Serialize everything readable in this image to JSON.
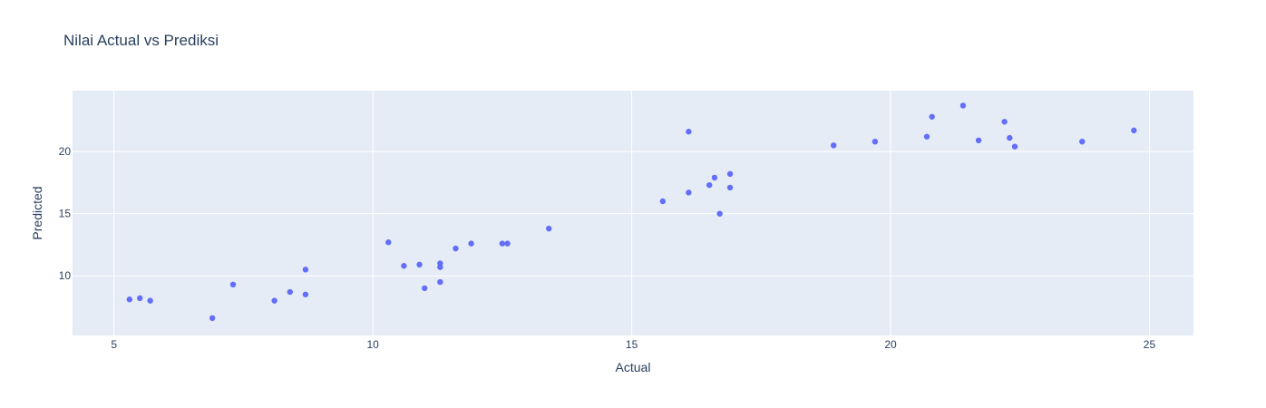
{
  "chart_data": {
    "type": "scatter",
    "title": "Nilai Actual vs Prediksi",
    "xlabel": "Actual",
    "ylabel": "Predicted",
    "xlim": [
      4.2,
      25.85
    ],
    "ylim": [
      5.2,
      24.9
    ],
    "xticks": [
      5,
      10,
      15,
      20,
      25
    ],
    "yticks": [
      10,
      15,
      20
    ],
    "grid": true,
    "colors": {
      "plot_bg": "#e5ecf6",
      "grid": "#ffffff",
      "marker": "#636efa",
      "text": "#2a3f5f"
    },
    "points": [
      {
        "x": 5.3,
        "y": 8.1
      },
      {
        "x": 5.5,
        "y": 8.2
      },
      {
        "x": 5.7,
        "y": 8.0
      },
      {
        "x": 6.9,
        "y": 6.6
      },
      {
        "x": 7.3,
        "y": 9.3
      },
      {
        "x": 8.1,
        "y": 8.0
      },
      {
        "x": 8.4,
        "y": 8.7
      },
      {
        "x": 8.7,
        "y": 8.5
      },
      {
        "x": 8.7,
        "y": 10.5
      },
      {
        "x": 10.3,
        "y": 12.7
      },
      {
        "x": 10.6,
        "y": 10.8
      },
      {
        "x": 10.9,
        "y": 10.9
      },
      {
        "x": 11.0,
        "y": 9.0
      },
      {
        "x": 11.3,
        "y": 11.0
      },
      {
        "x": 11.3,
        "y": 10.7
      },
      {
        "x": 11.3,
        "y": 9.5
      },
      {
        "x": 11.6,
        "y": 12.2
      },
      {
        "x": 11.9,
        "y": 12.6
      },
      {
        "x": 12.5,
        "y": 12.6
      },
      {
        "x": 12.6,
        "y": 12.6
      },
      {
        "x": 13.4,
        "y": 13.8
      },
      {
        "x": 15.6,
        "y": 16.0
      },
      {
        "x": 16.1,
        "y": 21.6
      },
      {
        "x": 16.1,
        "y": 16.7
      },
      {
        "x": 16.5,
        "y": 17.3
      },
      {
        "x": 16.6,
        "y": 17.9
      },
      {
        "x": 16.7,
        "y": 15.0
      },
      {
        "x": 16.9,
        "y": 18.2
      },
      {
        "x": 16.9,
        "y": 17.1
      },
      {
        "x": 18.9,
        "y": 20.5
      },
      {
        "x": 19.7,
        "y": 20.8
      },
      {
        "x": 20.7,
        "y": 21.2
      },
      {
        "x": 20.8,
        "y": 22.8
      },
      {
        "x": 21.4,
        "y": 23.7
      },
      {
        "x": 21.7,
        "y": 20.9
      },
      {
        "x": 22.2,
        "y": 22.4
      },
      {
        "x": 22.3,
        "y": 21.1
      },
      {
        "x": 22.4,
        "y": 20.4
      },
      {
        "x": 23.7,
        "y": 20.8
      },
      {
        "x": 24.7,
        "y": 21.7
      }
    ]
  }
}
